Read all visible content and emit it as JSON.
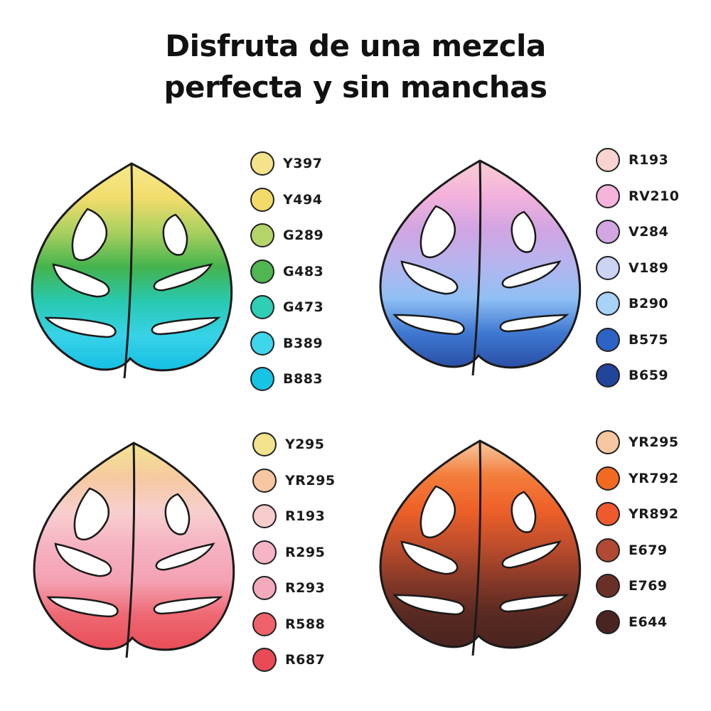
{
  "headline": {
    "line1": "Disfruta de una mezcla",
    "line2": "perfecta y sin manchas"
  },
  "panels": [
    {
      "swatches": [
        {
          "code": "Y397",
          "color": "#f4e38a"
        },
        {
          "code": "Y494",
          "color": "#f3db6a"
        },
        {
          "code": "G289",
          "color": "#b4d46a"
        },
        {
          "code": "G483",
          "color": "#4fb652"
        },
        {
          "code": "G473",
          "color": "#2ecfb4"
        },
        {
          "code": "B389",
          "color": "#3dd6ea"
        },
        {
          "code": "B883",
          "color": "#16c4e6"
        }
      ],
      "leaf_gradient": [
        "#f6ea8e",
        "#f2dc6c",
        "#a9d060",
        "#45b34e",
        "#27c9b0",
        "#38d2e8",
        "#15bfe4"
      ]
    },
    {
      "swatches": [
        {
          "code": "R193",
          "color": "#f8d3d0"
        },
        {
          "code": "RV210",
          "color": "#f6b3dc"
        },
        {
          "code": "V284",
          "color": "#d2a6e0"
        },
        {
          "code": "V189",
          "color": "#cdd3f2"
        },
        {
          "code": "B290",
          "color": "#a8d2f8"
        },
        {
          "code": "B575",
          "color": "#2d63c4"
        },
        {
          "code": "B659",
          "color": "#22449a"
        }
      ],
      "leaf_gradient": [
        "#f7cfd2",
        "#f4b2dc",
        "#d1a4e2",
        "#b6b4ee",
        "#8fc0f4",
        "#3f78d2",
        "#2a4fa6"
      ]
    },
    {
      "swatches": [
        {
          "code": "Y295",
          "color": "#f2e38c"
        },
        {
          "code": "YR295",
          "color": "#f6c7a0"
        },
        {
          "code": "R193",
          "color": "#f8cccb"
        },
        {
          "code": "R295",
          "color": "#f6b4c4"
        },
        {
          "code": "R293",
          "color": "#f5a9bc"
        },
        {
          "code": "R588",
          "color": "#f0626a"
        },
        {
          "code": "R687",
          "color": "#ea4a55"
        }
      ],
      "leaf_gradient": [
        "#f3e690",
        "#f6c9a0",
        "#f8cfcf",
        "#f6b2c2",
        "#f4a2b4",
        "#ee6872",
        "#e84d57"
      ]
    },
    {
      "swatches": [
        {
          "code": "YR295",
          "color": "#f6c7a0"
        },
        {
          "code": "YR792",
          "color": "#f26a22"
        },
        {
          "code": "YR892",
          "color": "#ee5a2e"
        },
        {
          "code": "E679",
          "color": "#b04a32"
        },
        {
          "code": "E769",
          "color": "#6a3028"
        },
        {
          "code": "E644",
          "color": "#4a2420"
        }
      ],
      "leaf_gradient": [
        "#f7caa2",
        "#f37e3c",
        "#ee6028",
        "#c04e2c",
        "#8a3a28",
        "#5a2a22",
        "#4a2420"
      ]
    }
  ]
}
